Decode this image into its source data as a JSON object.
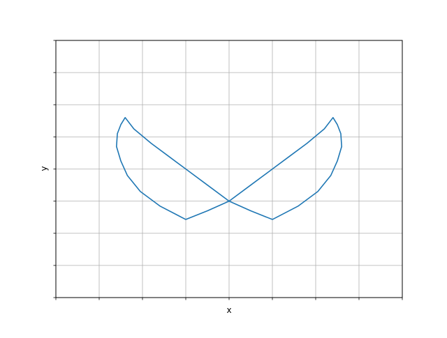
{
  "chart_data": {
    "type": "line",
    "title": "",
    "xlabel": "x",
    "ylabel": "y",
    "xlim": [
      0,
      8
    ],
    "ylim": [
      0,
      8
    ],
    "x_ticks": [
      0,
      1,
      2,
      3,
      4,
      5,
      6,
      7,
      8
    ],
    "y_ticks": [
      0,
      1,
      2,
      3,
      4,
      5,
      6,
      7,
      8
    ],
    "x_tick_labels": [],
    "y_tick_labels": [],
    "grid": true,
    "series": [
      {
        "color": "#1f77b4",
        "points": [
          [
            3.0,
            2.43
          ],
          [
            2.4,
            2.85
          ],
          [
            1.95,
            3.3
          ],
          [
            1.65,
            3.8
          ],
          [
            1.5,
            4.25
          ],
          [
            1.4,
            4.7
          ],
          [
            1.42,
            5.1
          ],
          [
            1.5,
            5.38
          ],
          [
            1.6,
            5.6
          ],
          [
            1.8,
            5.25
          ],
          [
            2.2,
            4.8
          ],
          [
            2.6,
            4.4
          ],
          [
            3.0,
            4.0
          ],
          [
            3.5,
            3.5
          ],
          [
            4.0,
            3.0
          ],
          [
            4.5,
            2.7
          ],
          [
            5.0,
            2.43
          ],
          [
            5.6,
            2.85
          ],
          [
            6.05,
            3.3
          ],
          [
            6.35,
            3.8
          ],
          [
            6.5,
            4.25
          ],
          [
            6.6,
            4.7
          ],
          [
            6.58,
            5.1
          ],
          [
            6.5,
            5.38
          ],
          [
            6.4,
            5.6
          ],
          [
            6.2,
            5.25
          ],
          [
            5.8,
            4.8
          ],
          [
            5.4,
            4.4
          ],
          [
            5.0,
            4.0
          ],
          [
            4.5,
            3.5
          ],
          [
            4.0,
            3.0
          ],
          [
            3.5,
            2.7
          ],
          [
            3.0,
            2.43
          ]
        ]
      }
    ]
  }
}
